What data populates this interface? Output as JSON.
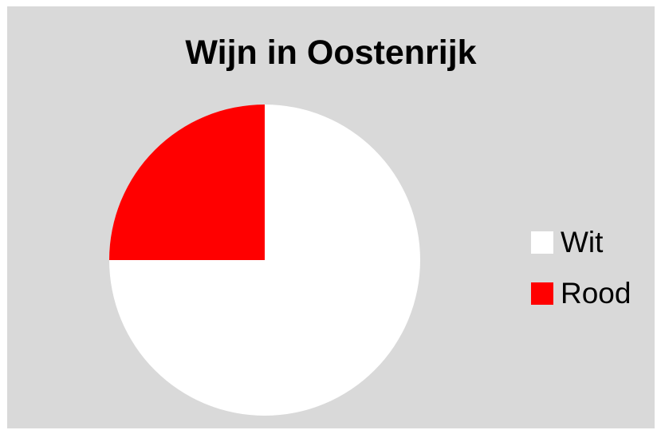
{
  "chart_data": {
    "type": "pie",
    "title": "Wijn in Oostenrijk",
    "categories": [
      "Wit",
      "Rood"
    ],
    "values": [
      75,
      25
    ],
    "colors": [
      "#ffffff",
      "#ff0000"
    ],
    "legend_position": "right",
    "background": "#d9d9d9"
  }
}
